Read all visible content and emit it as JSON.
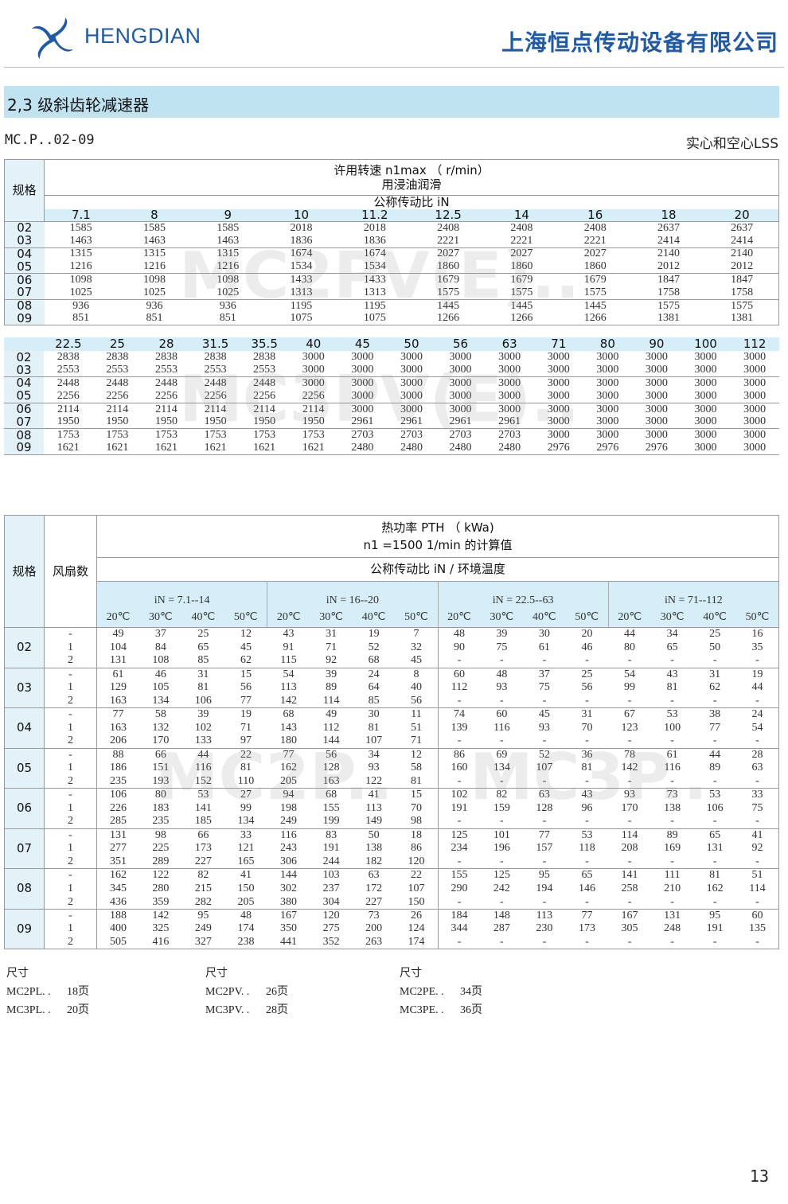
{
  "header": {
    "brand": "HENGDIAN",
    "company": "上海恒点传动设备有限公司",
    "logo_icon": "hengdian-swirl-logo",
    "brand_color": "#1e5aa8"
  },
  "section_title": "2,3 级斜齿轮减速器",
  "model": "MC.P..02-09",
  "shaft": "实心和空心LSS",
  "speed_table": {
    "col_header": "规格",
    "title_line1": "许用转速 n1max （ r/min）",
    "title_line2": "用浸油润滑",
    "ratio_label": "公称传动比 iN",
    "sizes": [
      "02",
      "03",
      "04",
      "05",
      "06",
      "07",
      "08",
      "09"
    ],
    "part1": {
      "ratios": [
        "7.1",
        "8",
        "9",
        "10",
        "11.2",
        "12.5",
        "14",
        "16",
        "18",
        "20"
      ],
      "rows": [
        [
          "1585",
          "1585",
          "1585",
          "2018",
          "2018",
          "2408",
          "2408",
          "2408",
          "2637",
          "2637"
        ],
        [
          "1463",
          "1463",
          "1463",
          "1836",
          "1836",
          "2221",
          "2221",
          "2221",
          "2414",
          "2414"
        ],
        [
          "1315",
          "1315",
          "1315",
          "1674",
          "1674",
          "2027",
          "2027",
          "2027",
          "2140",
          "2140"
        ],
        [
          "1216",
          "1216",
          "1216",
          "1534",
          "1534",
          "1860",
          "1860",
          "1860",
          "2012",
          "2012"
        ],
        [
          "1098",
          "1098",
          "1098",
          "1433",
          "1433",
          "1679",
          "1679",
          "1679",
          "1847",
          "1847"
        ],
        [
          "1025",
          "1025",
          "1025",
          "1313",
          "1313",
          "1575",
          "1575",
          "1575",
          "1758",
          "1758"
        ],
        [
          "936",
          "936",
          "936",
          "1195",
          "1195",
          "1445",
          "1445",
          "1445",
          "1575",
          "1575"
        ],
        [
          "851",
          "851",
          "851",
          "1075",
          "1075",
          "1266",
          "1266",
          "1266",
          "1381",
          "1381"
        ]
      ]
    },
    "part2": {
      "ratios": [
        "22.5",
        "25",
        "28",
        "31.5",
        "35.5",
        "40",
        "45",
        "50",
        "56",
        "63",
        "71",
        "80",
        "90",
        "100",
        "112"
      ],
      "rows": [
        [
          "2838",
          "2838",
          "2838",
          "2838",
          "2838",
          "3000",
          "3000",
          "3000",
          "3000",
          "3000",
          "3000",
          "3000",
          "3000",
          "3000",
          "3000"
        ],
        [
          "2553",
          "2553",
          "2553",
          "2553",
          "2553",
          "3000",
          "3000",
          "3000",
          "3000",
          "3000",
          "3000",
          "3000",
          "3000",
          "3000",
          "3000"
        ],
        [
          "2448",
          "2448",
          "2448",
          "2448",
          "2448",
          "3000",
          "3000",
          "3000",
          "3000",
          "3000",
          "3000",
          "3000",
          "3000",
          "3000",
          "3000"
        ],
        [
          "2256",
          "2256",
          "2256",
          "2256",
          "2256",
          "2256",
          "3000",
          "3000",
          "3000",
          "3000",
          "3000",
          "3000",
          "3000",
          "3000",
          "3000"
        ],
        [
          "2114",
          "2114",
          "2114",
          "2114",
          "2114",
          "2114",
          "3000",
          "3000",
          "3000",
          "3000",
          "3000",
          "3000",
          "3000",
          "3000",
          "3000"
        ],
        [
          "1950",
          "1950",
          "1950",
          "1950",
          "1950",
          "1950",
          "2961",
          "2961",
          "2961",
          "2961",
          "3000",
          "3000",
          "3000",
          "3000",
          "3000"
        ],
        [
          "1753",
          "1753",
          "1753",
          "1753",
          "1753",
          "1753",
          "2703",
          "2703",
          "2703",
          "2703",
          "3000",
          "3000",
          "3000",
          "3000",
          "3000"
        ],
        [
          "1621",
          "1621",
          "1621",
          "1621",
          "1621",
          "1621",
          "2480",
          "2480",
          "2480",
          "2480",
          "2976",
          "2976",
          "2976",
          "3000",
          "3000"
        ]
      ]
    }
  },
  "thermal_table": {
    "col_size": "规格",
    "col_fans": "风扇数",
    "title_line1": "热功率 PTH （ kWa)",
    "title_line2": "n1 =1500 1/min 的计算值",
    "sub_title": "公称传动比 iN / 环境温度",
    "groups": [
      "iN = 7.1--14",
      "iN = 16--20",
      "iN = 22.5--63",
      "iN = 71--112"
    ],
    "temps": [
      "20℃",
      "30℃",
      "40℃",
      "50℃"
    ],
    "fans": [
      "-",
      "1",
      "2"
    ],
    "blocks": [
      {
        "size": "02",
        "rows": [
          [
            "49",
            "37",
            "25",
            "12",
            "43",
            "31",
            "19",
            "7",
            "48",
            "39",
            "30",
            "20",
            "44",
            "34",
            "25",
            "16"
          ],
          [
            "104",
            "84",
            "65",
            "45",
            "91",
            "71",
            "52",
            "32",
            "90",
            "75",
            "61",
            "46",
            "80",
            "65",
            "50",
            "35"
          ],
          [
            "131",
            "108",
            "85",
            "62",
            "115",
            "92",
            "68",
            "45",
            "-",
            "-",
            "-",
            "-",
            "-",
            "-",
            "-",
            "-"
          ]
        ]
      },
      {
        "size": "03",
        "rows": [
          [
            "61",
            "46",
            "31",
            "15",
            "54",
            "39",
            "24",
            "8",
            "60",
            "48",
            "37",
            "25",
            "54",
            "43",
            "31",
            "19"
          ],
          [
            "129",
            "105",
            "81",
            "56",
            "113",
            "89",
            "64",
            "40",
            "112",
            "93",
            "75",
            "56",
            "99",
            "81",
            "62",
            "44"
          ],
          [
            "163",
            "134",
            "106",
            "77",
            "142",
            "114",
            "85",
            "56",
            "-",
            "-",
            "-",
            "-",
            "-",
            "-",
            "-",
            "-"
          ]
        ]
      },
      {
        "size": "04",
        "rows": [
          [
            "77",
            "58",
            "39",
            "19",
            "68",
            "49",
            "30",
            "11",
            "74",
            "60",
            "45",
            "31",
            "67",
            "53",
            "38",
            "24"
          ],
          [
            "163",
            "132",
            "102",
            "71",
            "143",
            "112",
            "81",
            "51",
            "139",
            "116",
            "93",
            "70",
            "123",
            "100",
            "77",
            "54"
          ],
          [
            "206",
            "170",
            "133",
            "97",
            "180",
            "144",
            "107",
            "71",
            "-",
            "-",
            "-",
            "-",
            "-",
            "-",
            "-",
            "-"
          ]
        ]
      },
      {
        "size": "05",
        "rows": [
          [
            "88",
            "66",
            "44",
            "22",
            "77",
            "56",
            "34",
            "12",
            "86",
            "69",
            "52",
            "36",
            "78",
            "61",
            "44",
            "28"
          ],
          [
            "186",
            "151",
            "116",
            "81",
            "162",
            "128",
            "93",
            "58",
            "160",
            "134",
            "107",
            "81",
            "142",
            "116",
            "89",
            "63"
          ],
          [
            "235",
            "193",
            "152",
            "110",
            "205",
            "163",
            "122",
            "81",
            "-",
            "-",
            "-",
            "-",
            "-",
            "-",
            "-",
            "-"
          ]
        ]
      },
      {
        "size": "06",
        "rows": [
          [
            "106",
            "80",
            "53",
            "27",
            "94",
            "68",
            "41",
            "15",
            "102",
            "82",
            "63",
            "43",
            "93",
            "73",
            "53",
            "33"
          ],
          [
            "226",
            "183",
            "141",
            "99",
            "198",
            "155",
            "113",
            "70",
            "191",
            "159",
            "128",
            "96",
            "170",
            "138",
            "106",
            "75"
          ],
          [
            "285",
            "235",
            "185",
            "134",
            "249",
            "199",
            "149",
            "98",
            "-",
            "-",
            "-",
            "-",
            "-",
            "-",
            "-",
            "-"
          ]
        ]
      },
      {
        "size": "07",
        "rows": [
          [
            "131",
            "98",
            "66",
            "33",
            "116",
            "83",
            "50",
            "18",
            "125",
            "101",
            "77",
            "53",
            "114",
            "89",
            "65",
            "41"
          ],
          [
            "277",
            "225",
            "173",
            "121",
            "243",
            "191",
            "138",
            "86",
            "234",
            "196",
            "157",
            "118",
            "208",
            "169",
            "131",
            "92"
          ],
          [
            "351",
            "289",
            "227",
            "165",
            "306",
            "244",
            "182",
            "120",
            "-",
            "-",
            "-",
            "-",
            "-",
            "-",
            "-",
            "-"
          ]
        ]
      },
      {
        "size": "08",
        "rows": [
          [
            "162",
            "122",
            "82",
            "41",
            "144",
            "103",
            "63",
            "22",
            "155",
            "125",
            "95",
            "65",
            "141",
            "111",
            "81",
            "51"
          ],
          [
            "345",
            "280",
            "215",
            "150",
            "302",
            "237",
            "172",
            "107",
            "290",
            "242",
            "194",
            "146",
            "258",
            "210",
            "162",
            "114"
          ],
          [
            "436",
            "359",
            "282",
            "205",
            "380",
            "304",
            "227",
            "150",
            "-",
            "-",
            "-",
            "-",
            "-",
            "-",
            "-",
            "-"
          ]
        ]
      },
      {
        "size": "09",
        "rows": [
          [
            "188",
            "142",
            "95",
            "48",
            "167",
            "120",
            "73",
            "26",
            "184",
            "148",
            "113",
            "77",
            "167",
            "131",
            "95",
            "60"
          ],
          [
            "400",
            "325",
            "249",
            "174",
            "350",
            "275",
            "200",
            "124",
            "344",
            "287",
            "230",
            "173",
            "305",
            "248",
            "191",
            "135"
          ],
          [
            "505",
            "416",
            "327",
            "238",
            "441",
            "352",
            "263",
            "174",
            "-",
            "-",
            "-",
            "-",
            "-",
            "-",
            "-",
            "-"
          ]
        ]
      }
    ]
  },
  "footer": {
    "label": "尺寸",
    "refs": [
      [
        {
          "model": "MC2PL. .",
          "page": "18页"
        },
        {
          "model": "MC3PL. .",
          "page": "20页"
        }
      ],
      [
        {
          "model": "MC2PV. .",
          "page": "26页"
        },
        {
          "model": "MC3PV. .",
          "page": "28页"
        }
      ],
      [
        {
          "model": "MC2PE. .",
          "page": "34页"
        },
        {
          "model": "MC3PE. .",
          "page": "36页"
        }
      ]
    ]
  },
  "watermarks": [
    "MC2PV(E)..",
    "MC3PV(E)..",
    "MC2P..",
    "MC3P.."
  ],
  "page_number": "13"
}
